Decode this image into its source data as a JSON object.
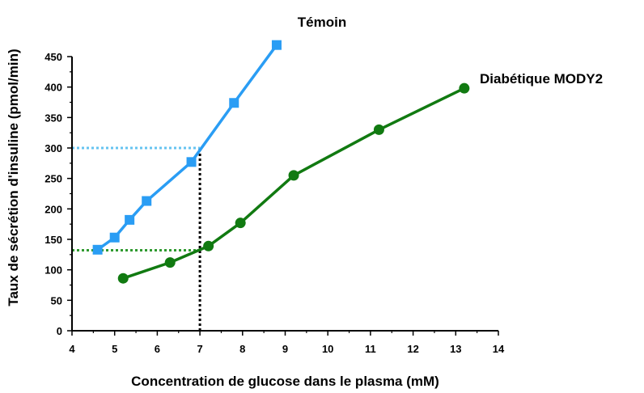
{
  "chart_data": {
    "type": "line",
    "xlabel": "Concentration de glucose dans le plasma (mM)",
    "ylabel": "Taux de sécrétion d'insuline (pmol/min)",
    "xlim": [
      4,
      14
    ],
    "ylim": [
      0,
      450
    ],
    "x_ticks": [
      "4",
      "5",
      "6",
      "7",
      "8",
      "9",
      "10",
      "11",
      "12",
      "13",
      "14"
    ],
    "y_ticks": [
      "0",
      "50",
      "100",
      "150",
      "200",
      "250",
      "300",
      "350",
      "400",
      "450"
    ],
    "grid": false,
    "series": [
      {
        "name": "Témoin",
        "color": "#2a9df4",
        "marker": "square",
        "x": [
          4.6,
          5.0,
          5.35,
          5.75,
          6.8,
          7.8,
          8.8
        ],
        "y": [
          133,
          153,
          182,
          213,
          277,
          374,
          469
        ]
      },
      {
        "name": "Diabétique MODY2",
        "color": "#117a11",
        "marker": "circle",
        "x": [
          5.2,
          6.3,
          7.2,
          7.95,
          9.2,
          11.2,
          13.2
        ],
        "y": [
          86,
          112,
          139,
          177,
          255,
          330,
          398
        ]
      }
    ],
    "reference_lines": [
      {
        "type": "horizontal",
        "y": 300,
        "x_to": 7,
        "color": "#66c3f0"
      },
      {
        "type": "horizontal",
        "y": 132,
        "x_to": 7,
        "color": "#2f9a2f"
      },
      {
        "type": "vertical",
        "x": 7,
        "y_to": 300,
        "color": "#000000"
      }
    ]
  }
}
